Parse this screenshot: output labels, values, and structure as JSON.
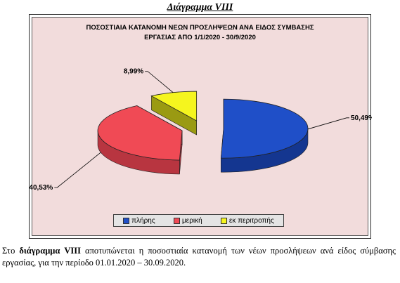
{
  "heading": "Διάγραμμα VIII",
  "chart_data": {
    "type": "pie",
    "title_lines": [
      "ΠΟΣΟΣΤΙΑΙΑ ΚΑΤΑΝΟΜΗ ΝΕΩΝ ΠΡΟΣΛΗΨΕΩΝ ΑΝΑ ΕΙΔΟΣ ΣΥΜΒΑΣΗΣ",
      "ΕΡΓΑΣΙΑΣ ΑΠΟ 1/1/2020 - 30/9/2020"
    ],
    "categories": [
      "πλήρης",
      "μερική",
      "εκ περιτροπής"
    ],
    "values": [
      50.49,
      40.53,
      8.99
    ],
    "data_labels": [
      "50,49%",
      "40,53%",
      "8,99%"
    ],
    "colors": [
      "#1f4fc8",
      "#f04a55",
      "#f5f51e"
    ],
    "side_colors": [
      "#143690",
      "#b83540",
      "#9a9a12"
    ],
    "legend_position": "bottom",
    "style": "3d-exploded"
  },
  "caption": {
    "prefix": "Στο ",
    "bold": "διάγραμμα VIII",
    "rest": " αποτυπώνεται η ποσοστιαία κατανομή των νέων προσλήψεων ανά είδος σύμβασης εργασίας, για την περίοδο 01.01.2020 – 30.09.2020."
  }
}
